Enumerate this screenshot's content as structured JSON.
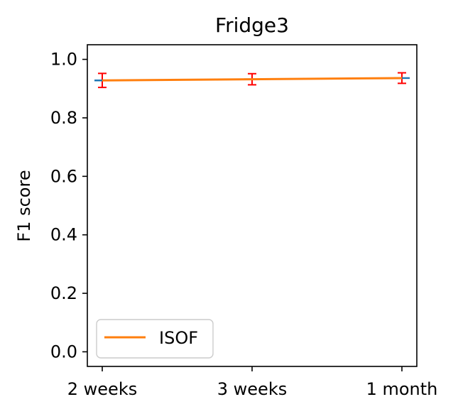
{
  "chart_data": {
    "type": "line",
    "title": "Fridge3",
    "xlabel": "",
    "ylabel": "F1 score",
    "categories": [
      "2 weeks",
      "3 weeks",
      "1 month"
    ],
    "ylim": [
      -0.05,
      1.05
    ],
    "yticks": [
      0.0,
      0.2,
      0.4,
      0.6,
      0.8,
      1.0
    ],
    "ytick_labels": [
      "0.0",
      "0.2",
      "0.4",
      "0.6",
      "0.8",
      "1.0"
    ],
    "grid": false,
    "legend": {
      "position": "lower-left",
      "entries": [
        "ISOF"
      ]
    },
    "series": [
      {
        "name": "ISOF",
        "color": "#ff7f0e",
        "values": [
          0.928,
          0.932,
          0.936
        ],
        "errors": [
          0.024,
          0.019,
          0.018
        ],
        "error_color": "#ff0000",
        "marker_color": "#1f77b4"
      }
    ]
  }
}
